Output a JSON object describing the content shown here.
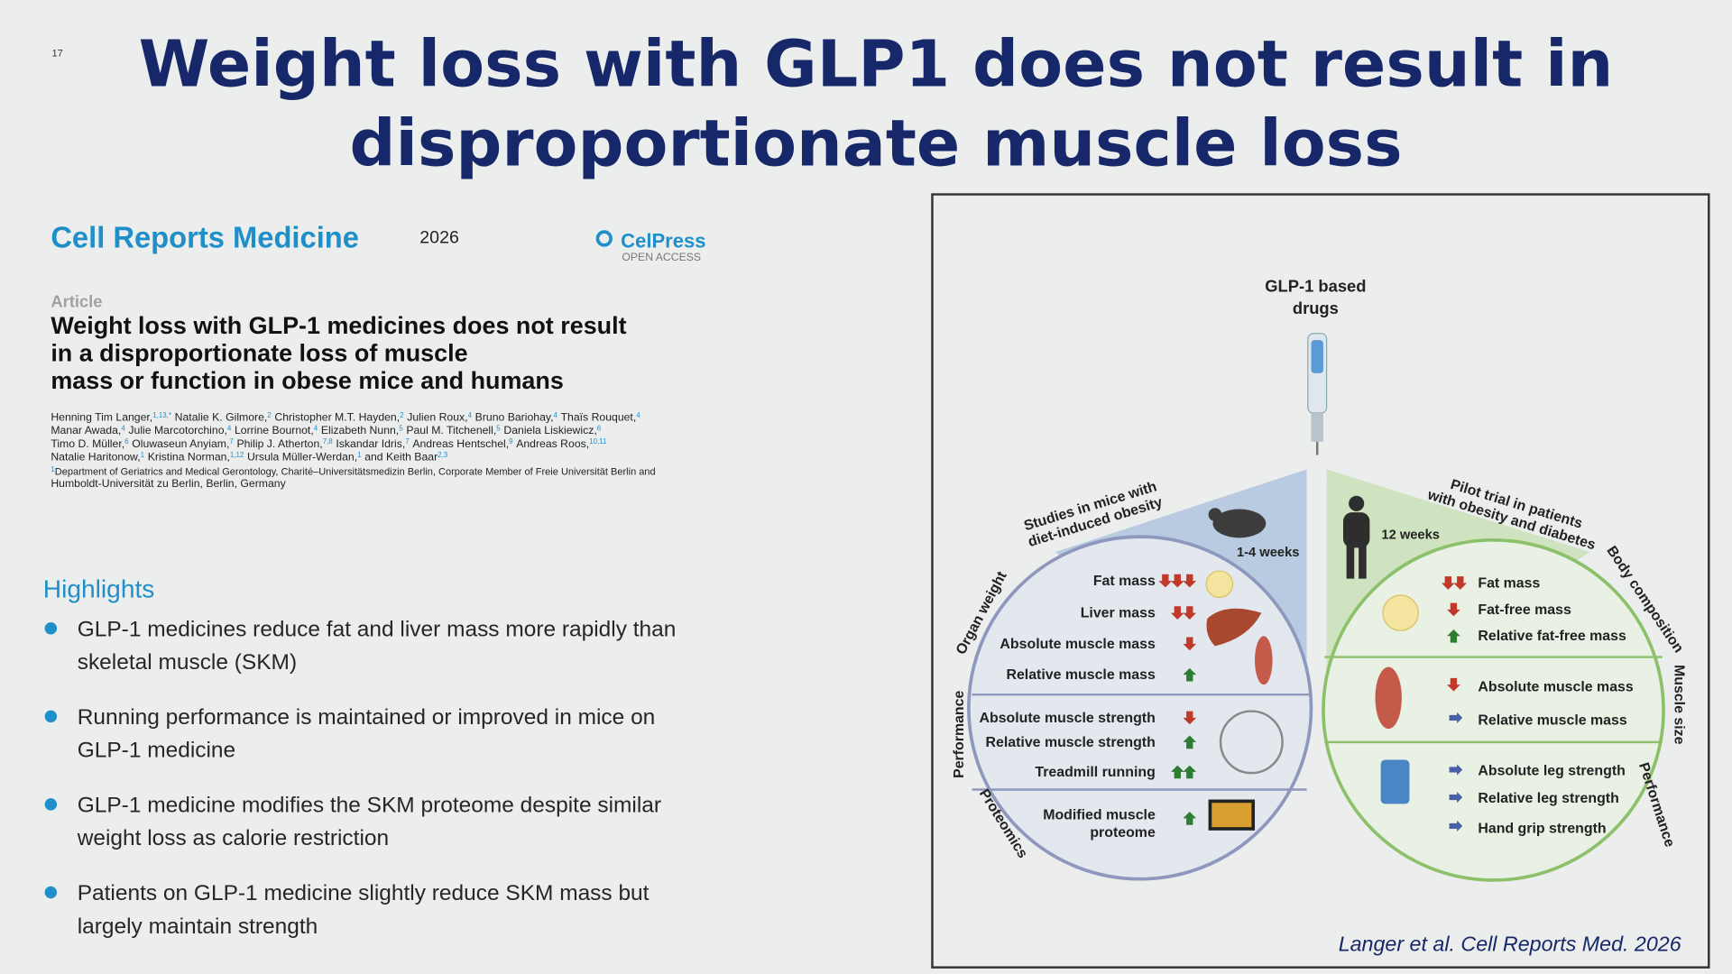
{
  "slide_number": "17",
  "title": [
    "Weight loss with GLP1 does not result in",
    "disproportionate muscle loss"
  ],
  "paper": {
    "journal": "Cell Reports Medicine",
    "year": "2026",
    "publisher": "CelPress",
    "access": "OPEN ACCESS",
    "section": "Article",
    "title": [
      "Weight loss with GLP-1 medicines does not result",
      "in a disproportionate loss of muscle",
      "mass or function in obese mice and humans"
    ],
    "authors": [
      [
        [
          "Henning Tim Langer,",
          "1,13,*"
        ],
        [
          "Natalie K. Gilmore,",
          "2"
        ],
        [
          "Christopher M.T. Hayden,",
          "2"
        ],
        [
          "Julien Roux,",
          "4"
        ],
        [
          "Bruno Bariohay,",
          "4"
        ],
        [
          "Thaïs Rouquet,",
          "4"
        ]
      ],
      [
        [
          "Manar Awada,",
          "4"
        ],
        [
          "Julie Marcotorchino,",
          "4"
        ],
        [
          "Lorrine Bournot,",
          "4"
        ],
        [
          "Elizabeth Nunn,",
          "5"
        ],
        [
          "Paul M. Titchenell,",
          "5"
        ],
        [
          "Daniela Liskiewicz,",
          "6"
        ]
      ],
      [
        [
          "Timo D. Müller,",
          "6"
        ],
        [
          "Oluwaseun Anyiam,",
          "7"
        ],
        [
          "Philip J. Atherton,",
          "7,8"
        ],
        [
          "Iskandar Idris,",
          "7"
        ],
        [
          "Andreas Hentschel,",
          "9"
        ],
        [
          "Andreas Roos,",
          "10,11"
        ]
      ],
      [
        [
          "Natalie Haritonow,",
          "1"
        ],
        [
          "Kristina Norman,",
          "1,12"
        ],
        [
          "Ursula Müller-Werdan,",
          "1"
        ],
        [
          "and Keith Baar",
          "2,3"
        ]
      ]
    ],
    "affiliation": {
      "sup": "1",
      "text": [
        "Department of Geriatrics and Medical Gerontology, Charité–Universitätsmedizin Berlin, Corporate Member of Freie Universität Berlin and",
        "Humboldt-Universität zu Berlin, Berlin, Germany"
      ]
    }
  },
  "highlights": {
    "heading": "Highlights",
    "items": [
      [
        "GLP-1 medicines reduce fat and liver mass more rapidly than",
        "skeletal muscle (SKM)"
      ],
      [
        "Running performance is maintained or improved in mice on",
        "GLP-1 medicine"
      ],
      [
        "GLP-1 medicine modifies the SKM proteome despite similar",
        "weight loss as calorie restriction"
      ],
      [
        "Patients on GLP-1 medicine slightly reduce SKM mass but",
        "largely maintain strength"
      ]
    ]
  },
  "figure": {
    "drug": [
      "GLP-1 based",
      "drugs"
    ],
    "mice": {
      "label": [
        "Studies in mice with",
        "diet-induced obesity"
      ],
      "duration": "1-4 weeks",
      "sections": [
        "Organ weight",
        "Performance",
        "Proteomics"
      ],
      "items": [
        "Fat mass",
        "Liver mass",
        "Absolute muscle mass",
        "Relative muscle mass",
        "Absolute muscle strength",
        "Relative muscle strength",
        "Treadmill running",
        "Modified muscle",
        "proteome"
      ]
    },
    "humans": {
      "label": [
        "Pilot trial in patients",
        "with obesity and diabetes"
      ],
      "duration": "12 weeks",
      "sections": [
        "Body composition",
        "Muscle size",
        "Performance"
      ],
      "items": [
        "Fat mass",
        "Fat-free mass",
        "Relative fat-free mass",
        "Absolute muscle mass",
        "Relative muscle mass",
        "Absolute leg strength",
        "Relative leg strength",
        "Hand grip strength"
      ]
    },
    "citation": "Langer et al. Cell Reports Med. 2026"
  }
}
